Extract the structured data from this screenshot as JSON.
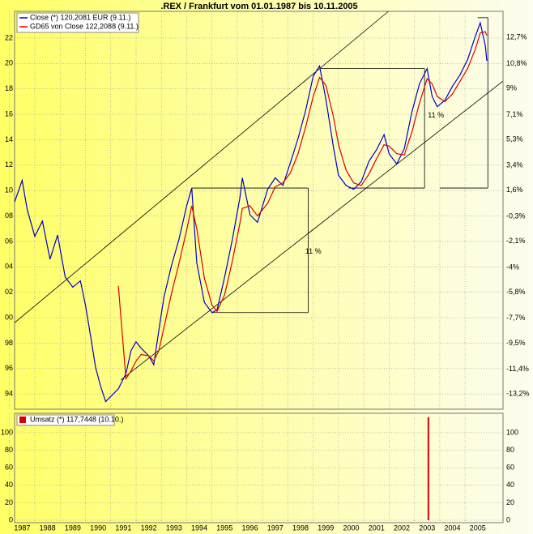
{
  "chart_data": [
    {
      "type": "line",
      "title": ".REX / Frankfurt vom 01.01.1987 bis 10.11.2005",
      "x": [
        1987.2,
        1987.5,
        1987.7,
        1988.0,
        1988.3,
        1988.6,
        1988.9,
        1989.2,
        1989.5,
        1989.8,
        1990.0,
        1990.2,
        1990.4,
        1990.6,
        1990.8,
        1991.0,
        1991.3,
        1991.6,
        1991.8,
        1992.0,
        1992.2,
        1992.5,
        1992.7,
        1992.9,
        1993.1,
        1993.4,
        1993.7,
        1994.0,
        1994.2,
        1994.4,
        1994.7,
        1995.0,
        1995.2,
        1995.5,
        1995.8,
        1996.1,
        1996.2,
        1996.5,
        1996.8,
        1997.2,
        1997.5,
        1997.8,
        1998.1,
        1998.4,
        1998.7,
        1999.0,
        1999.25,
        1999.5,
        1999.8,
        2000.0,
        2000.3,
        2000.6,
        2000.9,
        2001.2,
        2001.5,
        2001.8,
        2002.0,
        2002.3,
        2002.6,
        2002.9,
        2003.2,
        2003.5,
        2003.7,
        2003.9,
        2004.2,
        2004.5,
        2004.8,
        2005.1,
        2005.4,
        2005.6,
        2005.8,
        2005.86
      ],
      "series": [
        {
          "name": "Close (*) 120,2081 EUR (9.11.)",
          "color": "#0000cc",
          "values": [
            109.1,
            110.8,
            108.5,
            106.4,
            107.6,
            104.6,
            106.5,
            103.2,
            102.4,
            102.9,
            101.0,
            98.6,
            96.1,
            94.6,
            93.4,
            93.8,
            94.4,
            95.6,
            97.4,
            98.1,
            97.6,
            97.0,
            96.3,
            99.0,
            101.6,
            104.1,
            106.2,
            108.8,
            110.2,
            104.3,
            101.2,
            100.4,
            100.6,
            103.2,
            106.1,
            109.4,
            111.0,
            108.1,
            107.5,
            110.1,
            111.0,
            110.4,
            112.2,
            114.1,
            116.3,
            119.0,
            119.8,
            117.2,
            113.4,
            111.2,
            110.4,
            110.1,
            110.7,
            112.3,
            113.2,
            114.4,
            112.9,
            112.1,
            113.3,
            116.2,
            118.4,
            119.6,
            117.4,
            116.6,
            117.1,
            118.2,
            119.1,
            120.3,
            122.1,
            123.2,
            121.4,
            120.2
          ]
        },
        {
          "name": "GD65 von Close 122,2088 (9.11.)",
          "color": "#dd0000",
          "values": [
            null,
            null,
            null,
            null,
            null,
            null,
            null,
            null,
            null,
            null,
            null,
            null,
            null,
            null,
            null,
            null,
            102.5,
            95.2,
            95.8,
            96.6,
            97.1,
            97.0,
            96.6,
            97.4,
            99.2,
            101.9,
            104.3,
            106.9,
            108.8,
            107.0,
            103.1,
            101.0,
            100.5,
            101.8,
            104.4,
            107.4,
            108.6,
            108.8,
            108.0,
            109.0,
            110.3,
            110.6,
            111.4,
            112.9,
            115.0,
            117.4,
            118.9,
            118.3,
            115.8,
            113.6,
            111.6,
            110.6,
            110.4,
            111.3,
            112.5,
            113.6,
            113.5,
            112.9,
            112.8,
            114.6,
            116.9,
            118.8,
            118.4,
            117.4,
            117.0,
            117.6,
            118.6,
            119.6,
            121.1,
            122.4,
            122.5,
            122.2
          ]
        }
      ],
      "xlim": [
        1987.2,
        2006.5
      ],
      "ylim": [
        92.8,
        124.1
      ],
      "yticks": [
        {
          "value": 122,
          "label": "22"
        },
        {
          "value": 120,
          "label": "20"
        },
        {
          "value": 118,
          "label": "18"
        },
        {
          "value": 116,
          "label": "16"
        },
        {
          "value": 114,
          "label": "14"
        },
        {
          "value": 112,
          "label": "12"
        },
        {
          "value": 110,
          "label": "10"
        },
        {
          "value": 108,
          "label": "08"
        },
        {
          "value": 106,
          "label": "06"
        },
        {
          "value": 104,
          "label": "04"
        },
        {
          "value": 102,
          "label": "02"
        },
        {
          "value": 100,
          "label": "00"
        },
        98,
        96,
        94
      ],
      "y2lim": [
        -14.3,
        14.6
      ],
      "y2ticks": [
        {
          "value": 12.7,
          "label": "12,7%"
        },
        {
          "value": 10.8,
          "label": "10,8%"
        },
        {
          "value": 9,
          "label": "9%"
        },
        {
          "value": 7.1,
          "label": "7,1%"
        },
        {
          "value": 5.3,
          "label": "5,3%"
        },
        {
          "value": 3.4,
          "label": "3,4%"
        },
        {
          "value": 1.6,
          "label": "1,6%"
        },
        {
          "value": -0.3,
          "label": "-0,3%"
        },
        {
          "value": -2.1,
          "label": "-2,1%"
        },
        {
          "value": -4,
          "label": "-4%"
        },
        {
          "value": -5.8,
          "label": "-5,8%"
        },
        {
          "value": -7.7,
          "label": "-7,7%"
        },
        {
          "value": -9.5,
          "label": "-9,5%"
        },
        {
          "value": -11.4,
          "label": "-11,4%"
        },
        {
          "value": -13.2,
          "label": "-13,2%"
        }
      ],
      "grid": true,
      "lines": [
        [
          1987.2,
          99.6,
          2001.97,
          124.1
        ],
        [
          1991.4,
          95.1,
          2006.49,
          118.6
        ],
        [
          1994.2,
          110.2,
          1998.8,
          110.2
        ],
        [
          1995.0,
          100.4,
          1998.8,
          100.4
        ],
        [
          1998.8,
          110.2,
          1998.8,
          100.4
        ],
        [
          1999.25,
          119.6,
          2003.4,
          119.6
        ],
        [
          2000.4,
          110.2,
          2003.4,
          110.2
        ],
        [
          2003.4,
          119.6,
          2003.4,
          110.2
        ],
        [
          2004.0,
          110.2,
          2005.9,
          110.2
        ],
        [
          2005.9,
          123.6,
          2005.9,
          110.2
        ],
        [
          2005.5,
          123.6,
          2005.9,
          123.6
        ]
      ],
      "annotations": [
        {
          "text": "11 %",
          "x": 1999.0,
          "y": 105.2,
          "color": "#dd0000"
        },
        {
          "text": "11 %",
          "x": 2003.85,
          "y": 115.9,
          "color": "#dd0000"
        }
      ]
    },
    {
      "type": "bar",
      "x": [
        2003.55
      ],
      "series": [
        {
          "name": "Umsatz (*) 117,7448 (10.10.)",
          "color": "#dd0000",
          "values": [
            117.7448
          ]
        }
      ],
      "xlim": [
        1987.2,
        2006.5
      ],
      "ylim": [
        -2.8,
        122.2
      ],
      "yticks": [
        0,
        20,
        40,
        60,
        80,
        100
      ],
      "xticks": [
        1987,
        1988,
        1989,
        1990,
        1991,
        1992,
        1993,
        1994,
        1995,
        1996,
        1997,
        1998,
        1999,
        2000,
        2001,
        2002,
        2003,
        2004,
        2005
      ],
      "grid": true
    }
  ]
}
